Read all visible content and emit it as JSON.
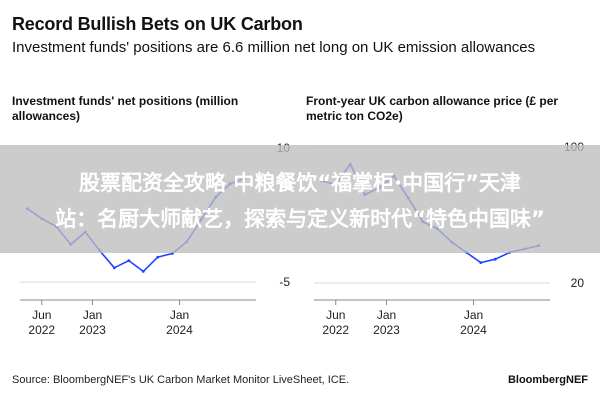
{
  "header": {
    "title": "Record Bullish Bets on UK Carbon",
    "subtitle": "Investment funds' positions are 6.6 million net long on UK emission allowances"
  },
  "overlay": {
    "line1": "股票配资全攻略 中粮餐饮“福掌柜·中国行”天津",
    "line2": "站：名厨大师献艺，探索与定义新时代“特色中国味”"
  },
  "footer": {
    "source": "Source: BloombergNEF's UK Carbon Market Monitor LiveSheet, ICE.",
    "brand": "BloombergNEF"
  },
  "colors": {
    "series": "#1f43ff",
    "grid": "#d9d9d9",
    "overlay": "#bebebe"
  },
  "chart_data": [
    {
      "type": "line",
      "title": "Investment funds' net positions (million allowances)",
      "xlabel": "",
      "ylabel": "",
      "x_tick_labels": [
        {
          "label": [
            "Jun",
            "2022"
          ],
          "x": "2022-06"
        },
        {
          "label": [
            "Jan",
            "2023"
          ],
          "x": "2023-01"
        },
        {
          "label": [
            "Jan",
            "2024"
          ],
          "x": "2024-01"
        }
      ],
      "y_ticks": [
        10,
        -5
      ],
      "ylim": [
        -7,
        12
      ],
      "xlim": [
        "2022-03",
        "2024-11"
      ],
      "grid": true,
      "series": [
        {
          "x": [
            "2022-04",
            "2022-06",
            "2022-08",
            "2022-10",
            "2022-12",
            "2023-02",
            "2023-04",
            "2023-06",
            "2023-08",
            "2023-10",
            "2023-12",
            "2024-02",
            "2024-04",
            "2024-06",
            "2024-08",
            "2024-10"
          ],
          "y": [
            3.2,
            2.1,
            1.2,
            -0.8,
            0.6,
            -1.5,
            -3.4,
            -2.6,
            -3.8,
            -2.2,
            -1.8,
            -0.5,
            2.0,
            4.5,
            6.0,
            6.6
          ]
        }
      ]
    },
    {
      "type": "line",
      "title": "Front-year UK carbon allowance price (£ per metric ton CO2e)",
      "xlabel": "",
      "ylabel": "",
      "x_tick_labels": [
        {
          "label": [
            "Jun",
            "2022"
          ],
          "x": "2022-06"
        },
        {
          "label": [
            "Jan",
            "2023"
          ],
          "x": "2023-01"
        },
        {
          "label": [
            "Jan",
            "2024"
          ],
          "x": "2024-01"
        }
      ],
      "y_ticks": [
        100,
        20
      ],
      "ylim": [
        10,
        110
      ],
      "xlim": [
        "2022-03",
        "2024-11"
      ],
      "grid": true,
      "series": [
        {
          "x": [
            "2022-04",
            "2022-06",
            "2022-08",
            "2022-10",
            "2022-12",
            "2023-02",
            "2023-04",
            "2023-06",
            "2023-08",
            "2023-10",
            "2023-12",
            "2024-02",
            "2024-04",
            "2024-06",
            "2024-08",
            "2024-10"
          ],
          "y": [
            80,
            78,
            90,
            72,
            76,
            83,
            70,
            56,
            52,
            44,
            38,
            32,
            34,
            38,
            40,
            42
          ]
        }
      ]
    }
  ]
}
